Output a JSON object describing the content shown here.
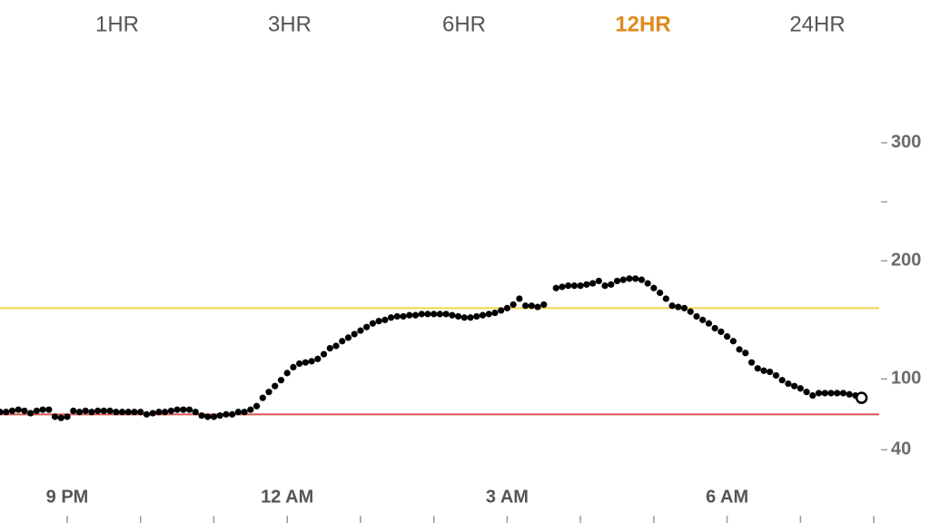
{
  "tabs": [
    "1HR",
    "3HR",
    "6HR",
    "12HR",
    "24HR"
  ],
  "selected_tab": 3,
  "chart_data": {
    "type": "scatter",
    "x": [
      -55,
      -50,
      -45,
      -40,
      -35,
      -30,
      -25,
      -20,
      -15,
      -10,
      -5,
      0,
      5,
      10,
      15,
      20,
      25,
      30,
      35,
      40,
      45,
      50,
      55,
      60,
      65,
      70,
      75,
      80,
      85,
      90,
      95,
      100,
      105,
      110,
      115,
      120,
      125,
      130,
      135,
      140,
      145,
      150,
      155,
      160,
      165,
      170,
      175,
      180,
      185,
      190,
      195,
      200,
      205,
      210,
      215,
      220,
      225,
      230,
      235,
      240,
      245,
      250,
      255,
      260,
      265,
      270,
      275,
      280,
      285,
      290,
      295,
      300,
      305,
      310,
      315,
      320,
      325,
      330,
      335,
      340,
      345,
      350,
      355,
      360,
      365,
      370,
      375,
      380,
      385,
      390,
      395,
      400,
      405,
      410,
      415,
      420,
      425,
      430,
      435,
      440,
      445,
      450,
      455,
      460,
      465,
      470,
      475,
      480,
      485,
      490,
      495,
      500,
      505,
      510,
      515,
      520,
      525,
      530,
      535,
      540,
      545,
      550,
      555,
      560,
      565,
      570,
      575,
      580,
      585,
      590,
      595,
      600,
      605,
      610,
      615,
      620,
      625,
      630,
      635,
      640,
      645,
      650
    ],
    "values": [
      72,
      72,
      73,
      74,
      73,
      71,
      73,
      74,
      74,
      68,
      67,
      68,
      73,
      72,
      73,
      72,
      73,
      73,
      73,
      72,
      72,
      72,
      72,
      72,
      70,
      71,
      72,
      72,
      73,
      74,
      74,
      74,
      72,
      69,
      68,
      68,
      69,
      70,
      70,
      72,
      72,
      74,
      77,
      84,
      89,
      94,
      99,
      105,
      110,
      113,
      114,
      115,
      117,
      121,
      126,
      128,
      132,
      135,
      138,
      141,
      144,
      147,
      149,
      150,
      152,
      153,
      153,
      154,
      154,
      155,
      155,
      155,
      155,
      155,
      154,
      153,
      152,
      152,
      153,
      154,
      155,
      156,
      158,
      160,
      163,
      168,
      162,
      162,
      161,
      163,
      null,
      177,
      178,
      179,
      179,
      179,
      180,
      181,
      183,
      179,
      180,
      183,
      184,
      185,
      185,
      184,
      181,
      177,
      173,
      168,
      162,
      161,
      160,
      157,
      153,
      150,
      147,
      143,
      140,
      136,
      132,
      125,
      122,
      114,
      109,
      107,
      106,
      103,
      99,
      96,
      94,
      92,
      89,
      86,
      88,
      88,
      88,
      88,
      88,
      87,
      86,
      84
    ],
    "color": "#000000",
    "xlim": [
      -55,
      706
    ],
    "xticks": [
      {
        "value": 0,
        "label": "9 PM"
      },
      {
        "value": 180,
        "label": "12 AM"
      },
      {
        "value": 360,
        "label": "3 AM"
      },
      {
        "value": 540,
        "label": "6 AM"
      }
    ],
    "xminorticks": [
      60,
      120,
      240,
      300,
      420,
      480,
      600,
      660
    ],
    "ylim": [
      -22,
      421
    ],
    "yticks": [
      40,
      100,
      200,
      300
    ],
    "yminorticks": [
      250
    ],
    "thresholds": [
      {
        "value": 160,
        "color": "#f0d44c"
      },
      {
        "value": 70,
        "color": "#d9534f"
      }
    ]
  }
}
